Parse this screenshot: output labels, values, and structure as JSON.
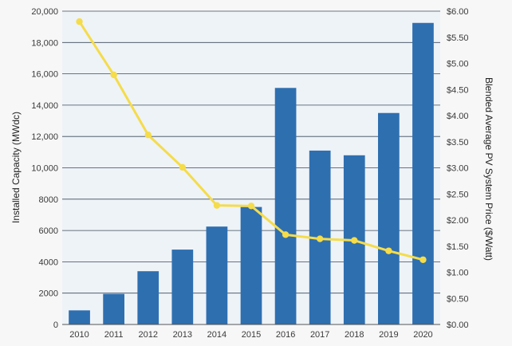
{
  "chart_data": {
    "type": "bar",
    "categories": [
      "2010",
      "2011",
      "2012",
      "2013",
      "2014",
      "2015",
      "2016",
      "2017",
      "2018",
      "2019",
      "2020"
    ],
    "series": [
      {
        "type": "bar",
        "axis": "left",
        "color": "#2e6fb0",
        "values": [
          900,
          1950,
          3400,
          4780,
          6250,
          7500,
          15100,
          11100,
          10800,
          13500,
          19250
        ]
      },
      {
        "type": "line",
        "axis": "right",
        "color": "#f5dc4a",
        "values": [
          5.8,
          4.78,
          3.63,
          3.01,
          2.28,
          2.27,
          1.72,
          1.64,
          1.61,
          1.41,
          1.24
        ]
      }
    ],
    "ylabel": "Installed Capacity (MWdc)",
    "y2label": "Blended Average PV System Price ($/Watt)",
    "ylim": [
      0,
      20000
    ],
    "y2lim": [
      0,
      6
    ],
    "yticks": [
      "0",
      "2000",
      "4000",
      "6000",
      "8000",
      "10,000",
      "12,000",
      "14,000",
      "16,000",
      "18,000",
      "20,000"
    ],
    "y2ticks": [
      "$0.00",
      "$0.50",
      "$1.00",
      "$1.50",
      "$2.00",
      "$2.50",
      "$3.00",
      "$3.50",
      "$4.00",
      "$4.50",
      "$5.00",
      "$5.50",
      "$6.00"
    ],
    "grid": true,
    "legend": "none"
  }
}
